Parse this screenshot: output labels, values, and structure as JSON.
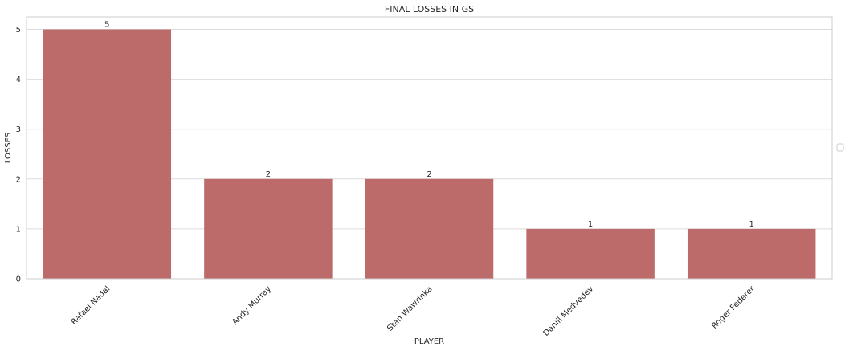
{
  "chart_data": {
    "type": "bar",
    "title": "FINAL LOSSES IN GS",
    "xlabel": "PLAYER",
    "ylabel": "LOSSES",
    "categories": [
      "Rafael Nadal",
      "Andy Murray",
      "Stan Wawrinka",
      "Daniil Medvedev",
      "Roger Federer"
    ],
    "values": [
      5,
      2,
      2,
      1,
      1
    ],
    "data_labels": [
      "5",
      "2",
      "2",
      "1",
      "1"
    ],
    "ylim": [
      0,
      5.25
    ],
    "yticks": [
      0,
      1,
      2,
      3,
      4,
      5
    ],
    "ytick_labels": [
      "0",
      "1",
      "2",
      "3",
      "4",
      "5"
    ],
    "grid": true,
    "legend": "right-center, empty",
    "colors": {
      "bar": "#bd6a6a",
      "grid": "#dcdcdc",
      "frame": "#cccccc",
      "text": "#262626"
    }
  }
}
